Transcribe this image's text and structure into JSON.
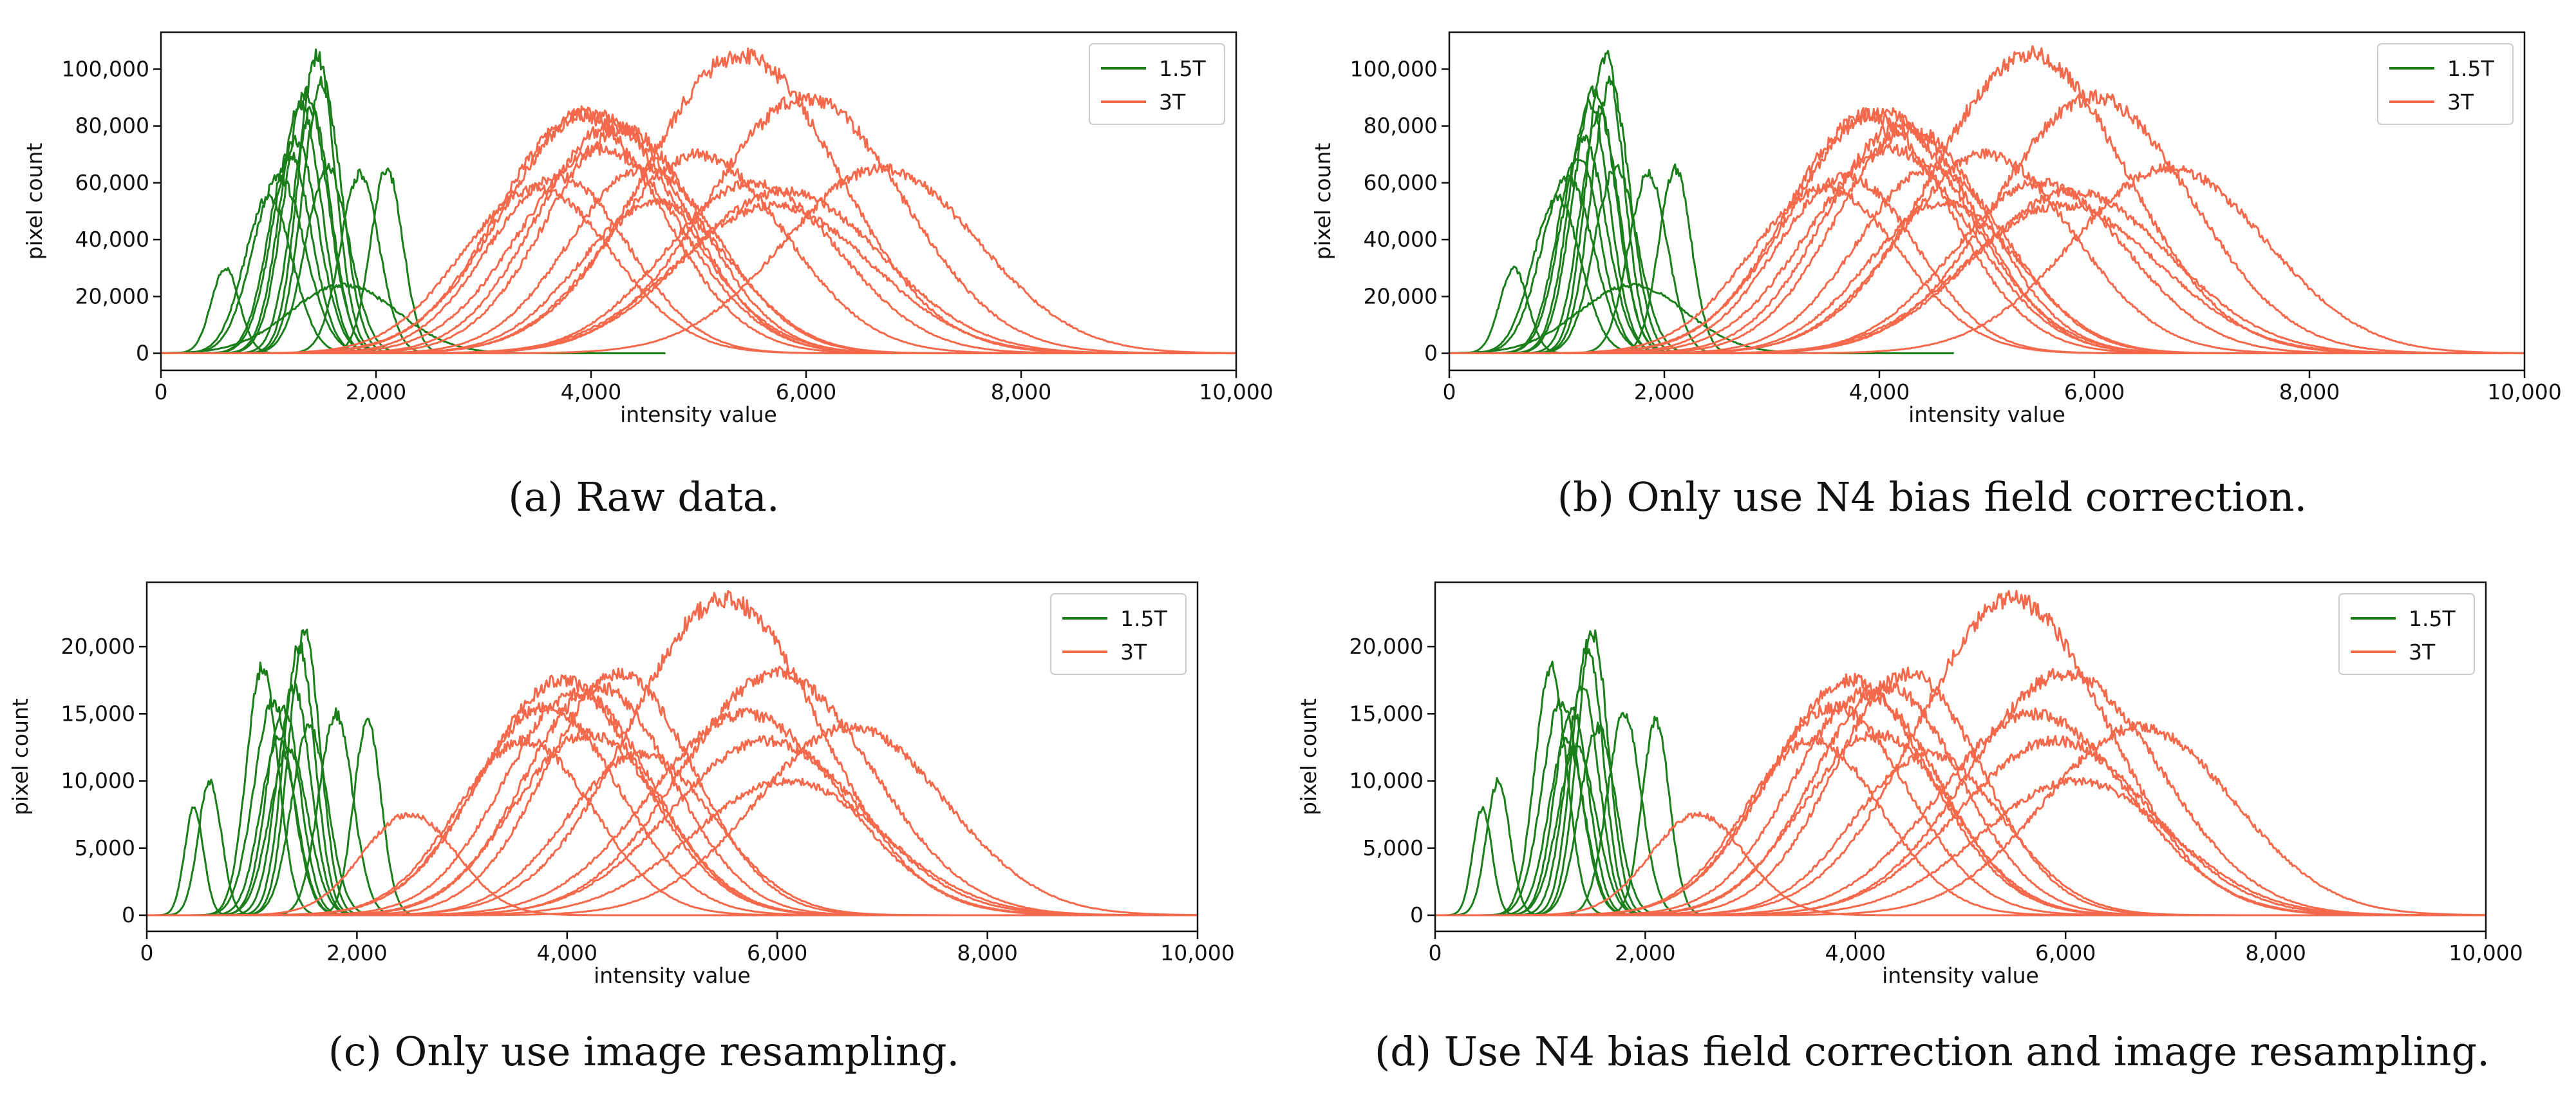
{
  "figure": {
    "captions": [
      "(a) Raw data.",
      "(b) Only use N4 bias field correction.",
      "(c) Only use image resampling.",
      "(d) Use N4 bias field correction and image resampling."
    ]
  },
  "colors": {
    "series_1_5T": "#1a7f1a",
    "series_3T": "#f4694b"
  },
  "chart_data": [
    {
      "type": "line",
      "title": "(a) Raw data.",
      "xlabel": "intensity value",
      "ylabel": "pixel count",
      "xlim": [
        0,
        10000
      ],
      "ylim": [
        -6000,
        113000
      ],
      "xticks": [
        0,
        2000,
        4000,
        6000,
        8000,
        10000
      ],
      "xtick_labels": [
        "0",
        "2,000",
        "4,000",
        "6,000",
        "8,000",
        "10,000"
      ],
      "yticks": [
        0,
        20000,
        40000,
        60000,
        80000,
        100000
      ],
      "ytick_labels": [
        "0",
        "20,000",
        "40,000",
        "60,000",
        "80,000",
        "100,000"
      ],
      "legend": {
        "position": "top-right",
        "entries": [
          "1.5T",
          "3T"
        ]
      },
      "series": [
        {
          "name": "1.5T",
          "peaks": [
            [
              600,
              30000,
              130
            ],
            [
              1000,
              55000,
              220
            ],
            [
              1100,
              62000,
              240
            ],
            [
              1200,
              70000,
              200
            ],
            [
              1250,
              75000,
              210
            ],
            [
              1300,
              88000,
              190
            ],
            [
              1350,
              92000,
              200
            ],
            [
              1400,
              85000,
              180
            ],
            [
              1450,
              105000,
              170
            ],
            [
              1500,
              95000,
              180
            ],
            [
              1550,
              65000,
              200
            ],
            [
              1850,
              63000,
              180
            ],
            [
              2100,
              65000,
              150
            ],
            [
              1700,
              24000,
              500
            ]
          ]
        },
        {
          "name": "3T",
          "peaks": [
            [
              3500,
              58000,
              700
            ],
            [
              3700,
              62000,
              650
            ],
            [
              3900,
              84000,
              750
            ],
            [
              4000,
              85000,
              800
            ],
            [
              4100,
              72000,
              750
            ],
            [
              4200,
              80000,
              700
            ],
            [
              4300,
              79000,
              700
            ],
            [
              4500,
              65000,
              700
            ],
            [
              4600,
              53000,
              700
            ],
            [
              5000,
              70000,
              800
            ],
            [
              5400,
              105000,
              900
            ],
            [
              5500,
              60000,
              800
            ],
            [
              5700,
              52000,
              900
            ],
            [
              5800,
              57000,
              900
            ],
            [
              6000,
              90000,
              900
            ],
            [
              6700,
              65000,
              900
            ]
          ]
        }
      ]
    },
    {
      "type": "line",
      "title": "(b) Only use N4 bias field correction.",
      "xlabel": "intensity value",
      "ylabel": "pixel count",
      "xlim": [
        0,
        10000
      ],
      "ylim": [
        -6000,
        113000
      ],
      "xticks": [
        0,
        2000,
        4000,
        6000,
        8000,
        10000
      ],
      "xtick_labels": [
        "0",
        "2,000",
        "4,000",
        "6,000",
        "8,000",
        "10,000"
      ],
      "yticks": [
        0,
        20000,
        40000,
        60000,
        80000,
        100000
      ],
      "ytick_labels": [
        "0",
        "20,000",
        "40,000",
        "60,000",
        "80,000",
        "100,000"
      ],
      "legend": {
        "position": "top-right",
        "entries": [
          "1.5T",
          "3T"
        ]
      },
      "series": [
        {
          "name": "1.5T",
          "peaks": [
            [
              600,
              30000,
              130
            ],
            [
              1000,
              55000,
              220
            ],
            [
              1100,
              62000,
              240
            ],
            [
              1200,
              70000,
              200
            ],
            [
              1250,
              75000,
              210
            ],
            [
              1300,
              88000,
              190
            ],
            [
              1350,
              92000,
              200
            ],
            [
              1400,
              85000,
              180
            ],
            [
              1450,
              105000,
              170
            ],
            [
              1500,
              95000,
              180
            ],
            [
              1550,
              65000,
              200
            ],
            [
              1850,
              63000,
              180
            ],
            [
              2100,
              65000,
              150
            ],
            [
              1700,
              24000,
              500
            ]
          ]
        },
        {
          "name": "3T",
          "peaks": [
            [
              3500,
              58000,
              700
            ],
            [
              3700,
              62000,
              650
            ],
            [
              3900,
              84000,
              750
            ],
            [
              4000,
              85000,
              800
            ],
            [
              4100,
              72000,
              750
            ],
            [
              4200,
              80000,
              700
            ],
            [
              4300,
              79000,
              700
            ],
            [
              4500,
              65000,
              700
            ],
            [
              4600,
              53000,
              700
            ],
            [
              5000,
              70000,
              800
            ],
            [
              5400,
              105000,
              900
            ],
            [
              5500,
              60000,
              800
            ],
            [
              5700,
              52000,
              900
            ],
            [
              5800,
              57000,
              900
            ],
            [
              6000,
              90000,
              900
            ],
            [
              6700,
              65000,
              900
            ]
          ]
        }
      ]
    },
    {
      "type": "line",
      "title": "(c) Only use image resampling.",
      "xlabel": "intensity value",
      "ylabel": "pixel count",
      "xlim": [
        0,
        10000
      ],
      "ylim": [
        -1200,
        24800
      ],
      "xticks": [
        0,
        2000,
        4000,
        6000,
        8000,
        10000
      ],
      "xtick_labels": [
        "0",
        "2,000",
        "4,000",
        "6,000",
        "8,000",
        "10,000"
      ],
      "yticks": [
        0,
        5000,
        10000,
        15000,
        20000
      ],
      "ytick_labels": [
        "0",
        "5,000",
        "10,000",
        "15,000",
        "20,000"
      ],
      "legend": {
        "position": "top-right",
        "entries": [
          "1.5T",
          "3T"
        ]
      },
      "series": [
        {
          "name": "1.5T",
          "peaks": [
            [
              450,
              8000,
              90
            ],
            [
              600,
              10000,
              110
            ],
            [
              1100,
              18500,
              150
            ],
            [
              1200,
              16000,
              180
            ],
            [
              1250,
              13000,
              170
            ],
            [
              1300,
              15500,
              160
            ],
            [
              1350,
              12500,
              180
            ],
            [
              1400,
              17000,
              160
            ],
            [
              1450,
              20000,
              150
            ],
            [
              1500,
              21000,
              150
            ],
            [
              1550,
              14000,
              170
            ],
            [
              1800,
              15000,
              160
            ],
            [
              2100,
              14500,
              130
            ]
          ]
        },
        {
          "name": "3T",
          "peaks": [
            [
              2500,
              7500,
              450
            ],
            [
              3600,
              13000,
              650
            ],
            [
              3800,
              15500,
              700
            ],
            [
              3950,
              17500,
              750
            ],
            [
              4100,
              16500,
              700
            ],
            [
              4200,
              13500,
              700
            ],
            [
              4300,
              17000,
              700
            ],
            [
              4500,
              18000,
              700
            ],
            [
              4700,
              12000,
              700
            ],
            [
              5500,
              23500,
              900
            ],
            [
              5700,
              15000,
              900
            ],
            [
              5900,
              13000,
              900
            ],
            [
              6000,
              18000,
              900
            ],
            [
              6100,
              10000,
              900
            ],
            [
              6700,
              14000,
              900
            ]
          ]
        }
      ]
    },
    {
      "type": "line",
      "title": "(d) Use N4 bias field correction and image resampling.",
      "xlabel": "intensity value",
      "ylabel": "pixel count",
      "xlim": [
        0,
        10000
      ],
      "ylim": [
        -1200,
        24800
      ],
      "xticks": [
        0,
        2000,
        4000,
        6000,
        8000,
        10000
      ],
      "xtick_labels": [
        "0",
        "2,000",
        "4,000",
        "6,000",
        "8,000",
        "10,000"
      ],
      "yticks": [
        0,
        5000,
        10000,
        15000,
        20000
      ],
      "ytick_labels": [
        "0",
        "5,000",
        "10,000",
        "15,000",
        "20,000"
      ],
      "legend": {
        "position": "top-right",
        "entries": [
          "1.5T",
          "3T"
        ]
      },
      "series": [
        {
          "name": "1.5T",
          "peaks": [
            [
              450,
              8000,
              90
            ],
            [
              600,
              10000,
              110
            ],
            [
              1100,
              18500,
              150
            ],
            [
              1200,
              16000,
              180
            ],
            [
              1250,
              13000,
              170
            ],
            [
              1300,
              15500,
              160
            ],
            [
              1350,
              12500,
              180
            ],
            [
              1400,
              17000,
              160
            ],
            [
              1450,
              20000,
              150
            ],
            [
              1500,
              21000,
              150
            ],
            [
              1550,
              14000,
              170
            ],
            [
              1800,
              15000,
              160
            ],
            [
              2100,
              14500,
              130
            ]
          ]
        },
        {
          "name": "3T",
          "peaks": [
            [
              2500,
              7500,
              450
            ],
            [
              3600,
              13000,
              650
            ],
            [
              3800,
              15500,
              700
            ],
            [
              3950,
              17500,
              750
            ],
            [
              4100,
              16500,
              700
            ],
            [
              4200,
              13500,
              700
            ],
            [
              4300,
              17000,
              700
            ],
            [
              4500,
              18000,
              700
            ],
            [
              4700,
              12000,
              700
            ],
            [
              5500,
              23500,
              900
            ],
            [
              5700,
              15000,
              900
            ],
            [
              5900,
              13000,
              900
            ],
            [
              6000,
              18000,
              900
            ],
            [
              6100,
              10000,
              900
            ],
            [
              6700,
              14000,
              900
            ]
          ]
        }
      ]
    }
  ]
}
